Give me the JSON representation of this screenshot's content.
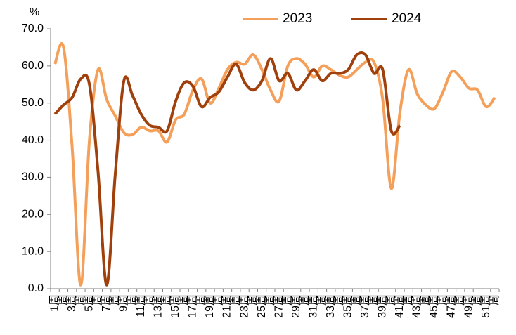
{
  "chart_data": {
    "type": "line",
    "y_label": "%",
    "categories": [
      "1周",
      "周",
      "3周",
      "周",
      "5周",
      "周",
      "7周",
      "周",
      "9周",
      "周",
      "11周",
      "周",
      "13周",
      "周",
      "15周",
      "周",
      "17周",
      "周",
      "19周",
      "周",
      "21周",
      "周",
      "23周",
      "周",
      "25周",
      "周",
      "27周",
      "周",
      "29周",
      "周",
      "31周",
      "周",
      "33周",
      "周",
      "35周",
      "周",
      "37周",
      "周",
      "39周",
      "周",
      "41周",
      "周",
      "43周",
      "周",
      "45周",
      "周",
      "47周",
      "周",
      "49周",
      "周",
      "51周",
      "周"
    ],
    "series": [
      {
        "name": "2023",
        "color": "#f5a05a",
        "values": [
          60.5,
          65,
          38,
          1,
          40,
          59,
          51,
          46.5,
          42,
          41.5,
          43.5,
          42.5,
          42.5,
          39.5,
          45.5,
          47,
          53.5,
          56.5,
          50,
          54,
          59,
          61,
          60.5,
          63,
          59,
          53.5,
          50.5,
          60,
          62,
          60.5,
          57,
          60,
          59,
          57.5,
          57,
          59,
          61,
          61,
          51,
          27,
          47.5,
          59,
          52.5,
          49.5,
          48.5,
          53,
          58.5,
          57,
          54,
          53.5,
          49,
          51.5
        ]
      },
      {
        "name": "2024",
        "color": "#a0410d",
        "values": [
          47,
          49.5,
          51.5,
          56.5,
          55,
          31.5,
          1,
          31,
          56,
          52,
          47,
          44,
          43.5,
          42.5,
          50.5,
          55.5,
          54.5,
          49,
          51.5,
          53,
          57,
          60.5,
          55.5,
          53.5,
          56,
          62,
          56,
          58,
          53.5,
          56,
          59,
          56,
          58,
          58,
          59,
          63,
          63,
          58,
          59,
          42.5,
          44,
          null,
          null,
          null,
          null,
          null,
          null,
          null,
          null,
          null,
          null,
          null
        ]
      }
    ],
    "ylim": [
      0,
      70
    ],
    "yticks": [
      {
        "value": 0,
        "label": "0.0"
      },
      {
        "value": 10,
        "label": "10.0"
      },
      {
        "value": 20,
        "label": "20.0"
      },
      {
        "value": 30,
        "label": "30.0"
      },
      {
        "value": 40,
        "label": "40.0"
      },
      {
        "value": 50,
        "label": "50.0"
      },
      {
        "value": 60,
        "label": "60.0"
      },
      {
        "value": 70,
        "label": "70.0"
      }
    ],
    "legend": "top"
  }
}
